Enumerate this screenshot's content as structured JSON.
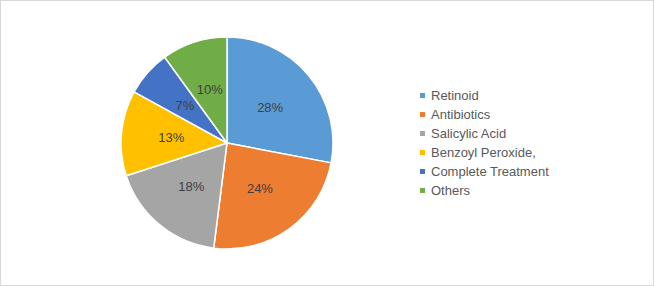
{
  "chart_data": {
    "type": "pie",
    "categories": [
      "Retinoid",
      "Antibiotics",
      "Salicylic Acid",
      "Benzoyl Peroxide,",
      "Complete Treatment",
      "Others"
    ],
    "values": [
      28,
      24,
      18,
      13,
      7,
      10
    ],
    "value_labels": [
      "28%",
      "24%",
      "18%",
      "13%",
      "7%",
      "10%"
    ],
    "colors": [
      "#5b9bd5",
      "#ed7d31",
      "#a5a5a5",
      "#ffc000",
      "#4472c4",
      "#70ad47"
    ],
    "data_labels": true,
    "legend": "right"
  }
}
